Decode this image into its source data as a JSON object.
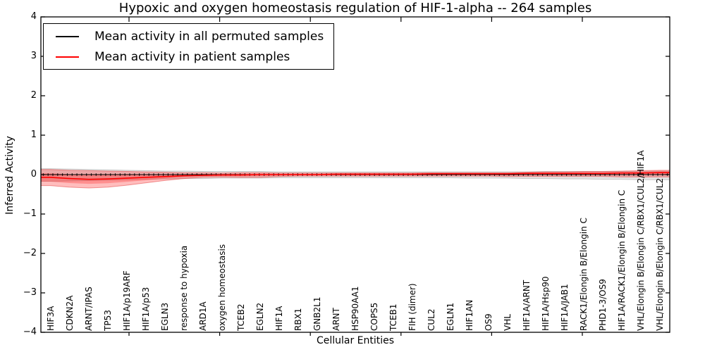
{
  "title": "Hypoxic and oxygen homeostasis regulation of HIF-1-alpha -- 264 samples",
  "legend": {
    "items": [
      {
        "label": "Mean activity in all permuted samples",
        "color": "#000000"
      },
      {
        "label": "Mean activity in patient samples",
        "color": "#ff0000"
      }
    ]
  },
  "axes": {
    "ylabel": "Inferred Activity",
    "xlabel": "Cellular Entities",
    "ytick_labels": [
      "4",
      "3",
      "2",
      "1",
      "0",
      "−1",
      "−2",
      "−3",
      "−4"
    ],
    "ytick_values": [
      4,
      3,
      2,
      1,
      0,
      -1,
      -2,
      -3,
      -4
    ]
  },
  "chart_data": {
    "type": "line",
    "title": "Hypoxic and oxygen homeostasis regulation of HIF-1-alpha -- 264 samples",
    "xlabel": "Cellular Entities",
    "ylabel": "Inferred Activity",
    "ylim": [
      -4,
      4
    ],
    "grid": false,
    "legend_position": "upper left",
    "categories": [
      "HIF3A",
      "CDKN2A",
      "ARNT/IPAS",
      "TP53",
      "HIF1A/p19ARF",
      "HIF1A/p53",
      "EGLN3",
      "response to hypoxia",
      "ARD1A",
      "oxygen homeostasis",
      "TCEB2",
      "EGLN2",
      "HIF1A",
      "RBX1",
      "GNB2L1",
      "ARNT",
      "HSP90AA1",
      "COPS5",
      "TCEB1",
      "FIH (dimer)",
      "CUL2",
      "EGLN1",
      "HIF1AN",
      "OS9",
      "VHL",
      "HIF1A/ARNT",
      "HIF1A/Hsp90",
      "HIF1A/JAB1",
      "RACK1/Elongin B/Elongin C",
      "PHD1-3/OS9",
      "HIF1A/RACK1/Elongin B/Elongin C",
      "VHL/Elongin B/Elongin C/RBX1/CUL2/HIF1A",
      "VHL/Elongin B/Elongin C/RBX1/CUL2"
    ],
    "series": [
      {
        "name": "Mean activity in all permuted samples",
        "color": "#000000",
        "band_color": "#888888",
        "values": [
          0,
          0,
          0,
          0,
          0,
          0,
          0,
          0,
          0,
          0,
          0,
          0,
          0,
          0,
          0,
          0,
          0,
          0,
          0,
          0,
          0,
          0,
          0,
          0,
          0,
          0,
          0,
          0,
          0,
          0,
          0,
          0,
          0
        ],
        "band_upper": [
          0.15,
          0.14,
          0.13,
          0.12,
          0.11,
          0.1,
          0.09,
          0.09,
          0.08,
          0.08,
          0.08,
          0.08,
          0.07,
          0.07,
          0.07,
          0.07,
          0.07,
          0.07,
          0.07,
          0.07,
          0.07,
          0.07,
          0.07,
          0.07,
          0.07,
          0.07,
          0.08,
          0.08,
          0.08,
          0.08,
          0.08,
          0.08,
          0.09
        ],
        "band_lower": [
          -0.17,
          -0.16,
          -0.15,
          -0.14,
          -0.13,
          -0.12,
          -0.11,
          -0.1,
          -0.1,
          -0.09,
          -0.09,
          -0.09,
          -0.08,
          -0.08,
          -0.08,
          -0.08,
          -0.08,
          -0.08,
          -0.08,
          -0.08,
          -0.08,
          -0.08,
          -0.09,
          -0.09,
          -0.09,
          -0.1,
          -0.1,
          -0.11,
          -0.11,
          -0.12,
          -0.12,
          -0.13,
          -0.13
        ]
      },
      {
        "name": "Mean activity in patient samples",
        "color": "#ff0000",
        "band_color": "#ff0000",
        "values": [
          -0.07,
          -0.1,
          -0.12,
          -0.11,
          -0.09,
          -0.07,
          -0.05,
          -0.03,
          -0.02,
          -0.01,
          -0.01,
          0,
          0,
          0,
          0,
          0.01,
          0.01,
          0.01,
          0.01,
          0.01,
          0.02,
          0.02,
          0.02,
          0.02,
          0.02,
          0.03,
          0.03,
          0.03,
          0.03,
          0.03,
          0.04,
          0.04,
          0.05
        ],
        "band_upper": [
          0.13,
          0.11,
          0.1,
          0.09,
          0.08,
          0.07,
          0.06,
          0.05,
          0.05,
          0.04,
          0.05,
          0.05,
          0.04,
          0.04,
          0.04,
          0.04,
          0.04,
          0.04,
          0.04,
          0.04,
          0.05,
          0.05,
          0.05,
          0.05,
          0.05,
          0.06,
          0.07,
          0.07,
          0.08,
          0.08,
          0.09,
          0.1,
          0.11
        ],
        "band_lower": [
          -0.28,
          -0.32,
          -0.34,
          -0.32,
          -0.27,
          -0.21,
          -0.15,
          -0.1,
          -0.07,
          -0.06,
          -0.07,
          -0.07,
          -0.05,
          -0.04,
          -0.04,
          -0.04,
          -0.04,
          -0.04,
          -0.04,
          -0.04,
          -0.04,
          -0.04,
          -0.04,
          -0.04,
          -0.05,
          -0.05,
          -0.05,
          -0.05,
          -0.05,
          -0.05,
          -0.06,
          -0.06,
          -0.06
        ]
      }
    ]
  }
}
